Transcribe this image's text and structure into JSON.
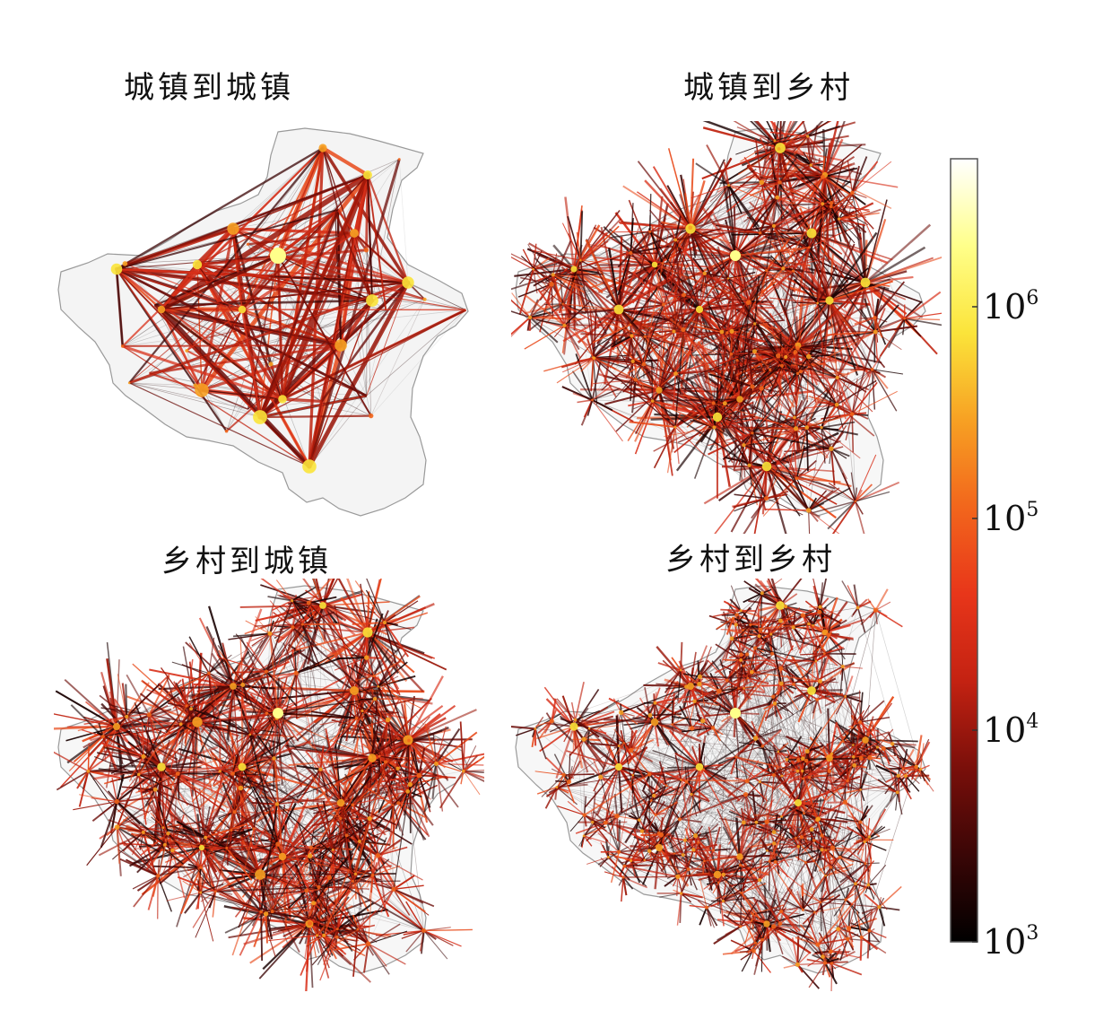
{
  "panels": [
    {
      "title": "城镇到城镇",
      "style": "sparse"
    },
    {
      "title": "城镇到乡村",
      "style": "medium"
    },
    {
      "title": "乡村到城镇",
      "style": "medium"
    },
    {
      "title": "乡村到乡村",
      "style": "dense"
    }
  ],
  "colorbar": {
    "scale": "log",
    "range": [
      1000,
      5000000
    ],
    "colormap": [
      "#000000",
      "#3a0606",
      "#7a0f0a",
      "#c42212",
      "#e8361a",
      "#f2661c",
      "#f7a123",
      "#fbe43a",
      "#ffff8a",
      "#ffffff"
    ],
    "ticks": [
      {
        "base": "10",
        "exp": "6",
        "value": 1000000
      },
      {
        "base": "10",
        "exp": "5",
        "value": 100000
      },
      {
        "base": "10",
        "exp": "4",
        "value": 10000
      },
      {
        "base": "10",
        "exp": "3",
        "value": 1000
      }
    ]
  }
}
